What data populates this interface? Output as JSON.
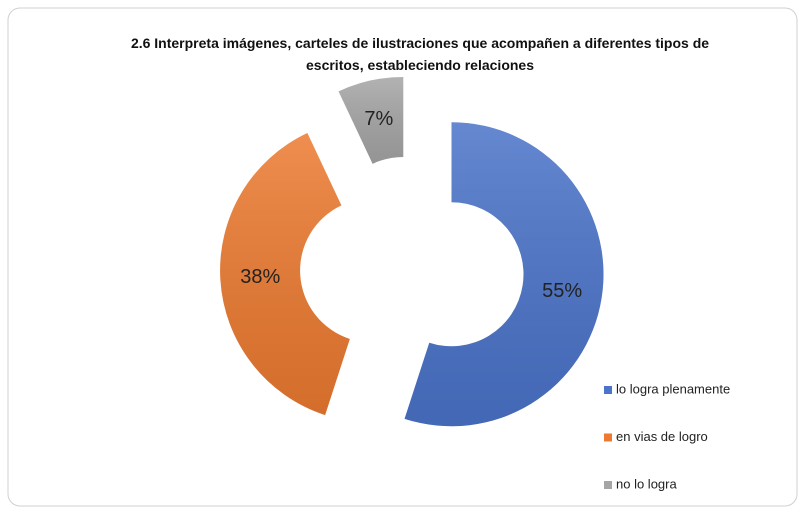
{
  "chart_data": {
    "type": "pie",
    "title": "2.6 Interpreta imágenes, carteles de ilustraciones que acompañen a diferentes tipos de escritos, estableciendo relaciones",
    "categories": [
      "lo logra plenamente",
      "en vias de logro",
      "no lo logra"
    ],
    "values": [
      55,
      38,
      7
    ],
    "value_labels": [
      "55%",
      "38%",
      "7%"
    ],
    "colors": [
      "#4a73c9",
      "#ec7a30",
      "#a5a5a5"
    ],
    "legend": "right"
  }
}
